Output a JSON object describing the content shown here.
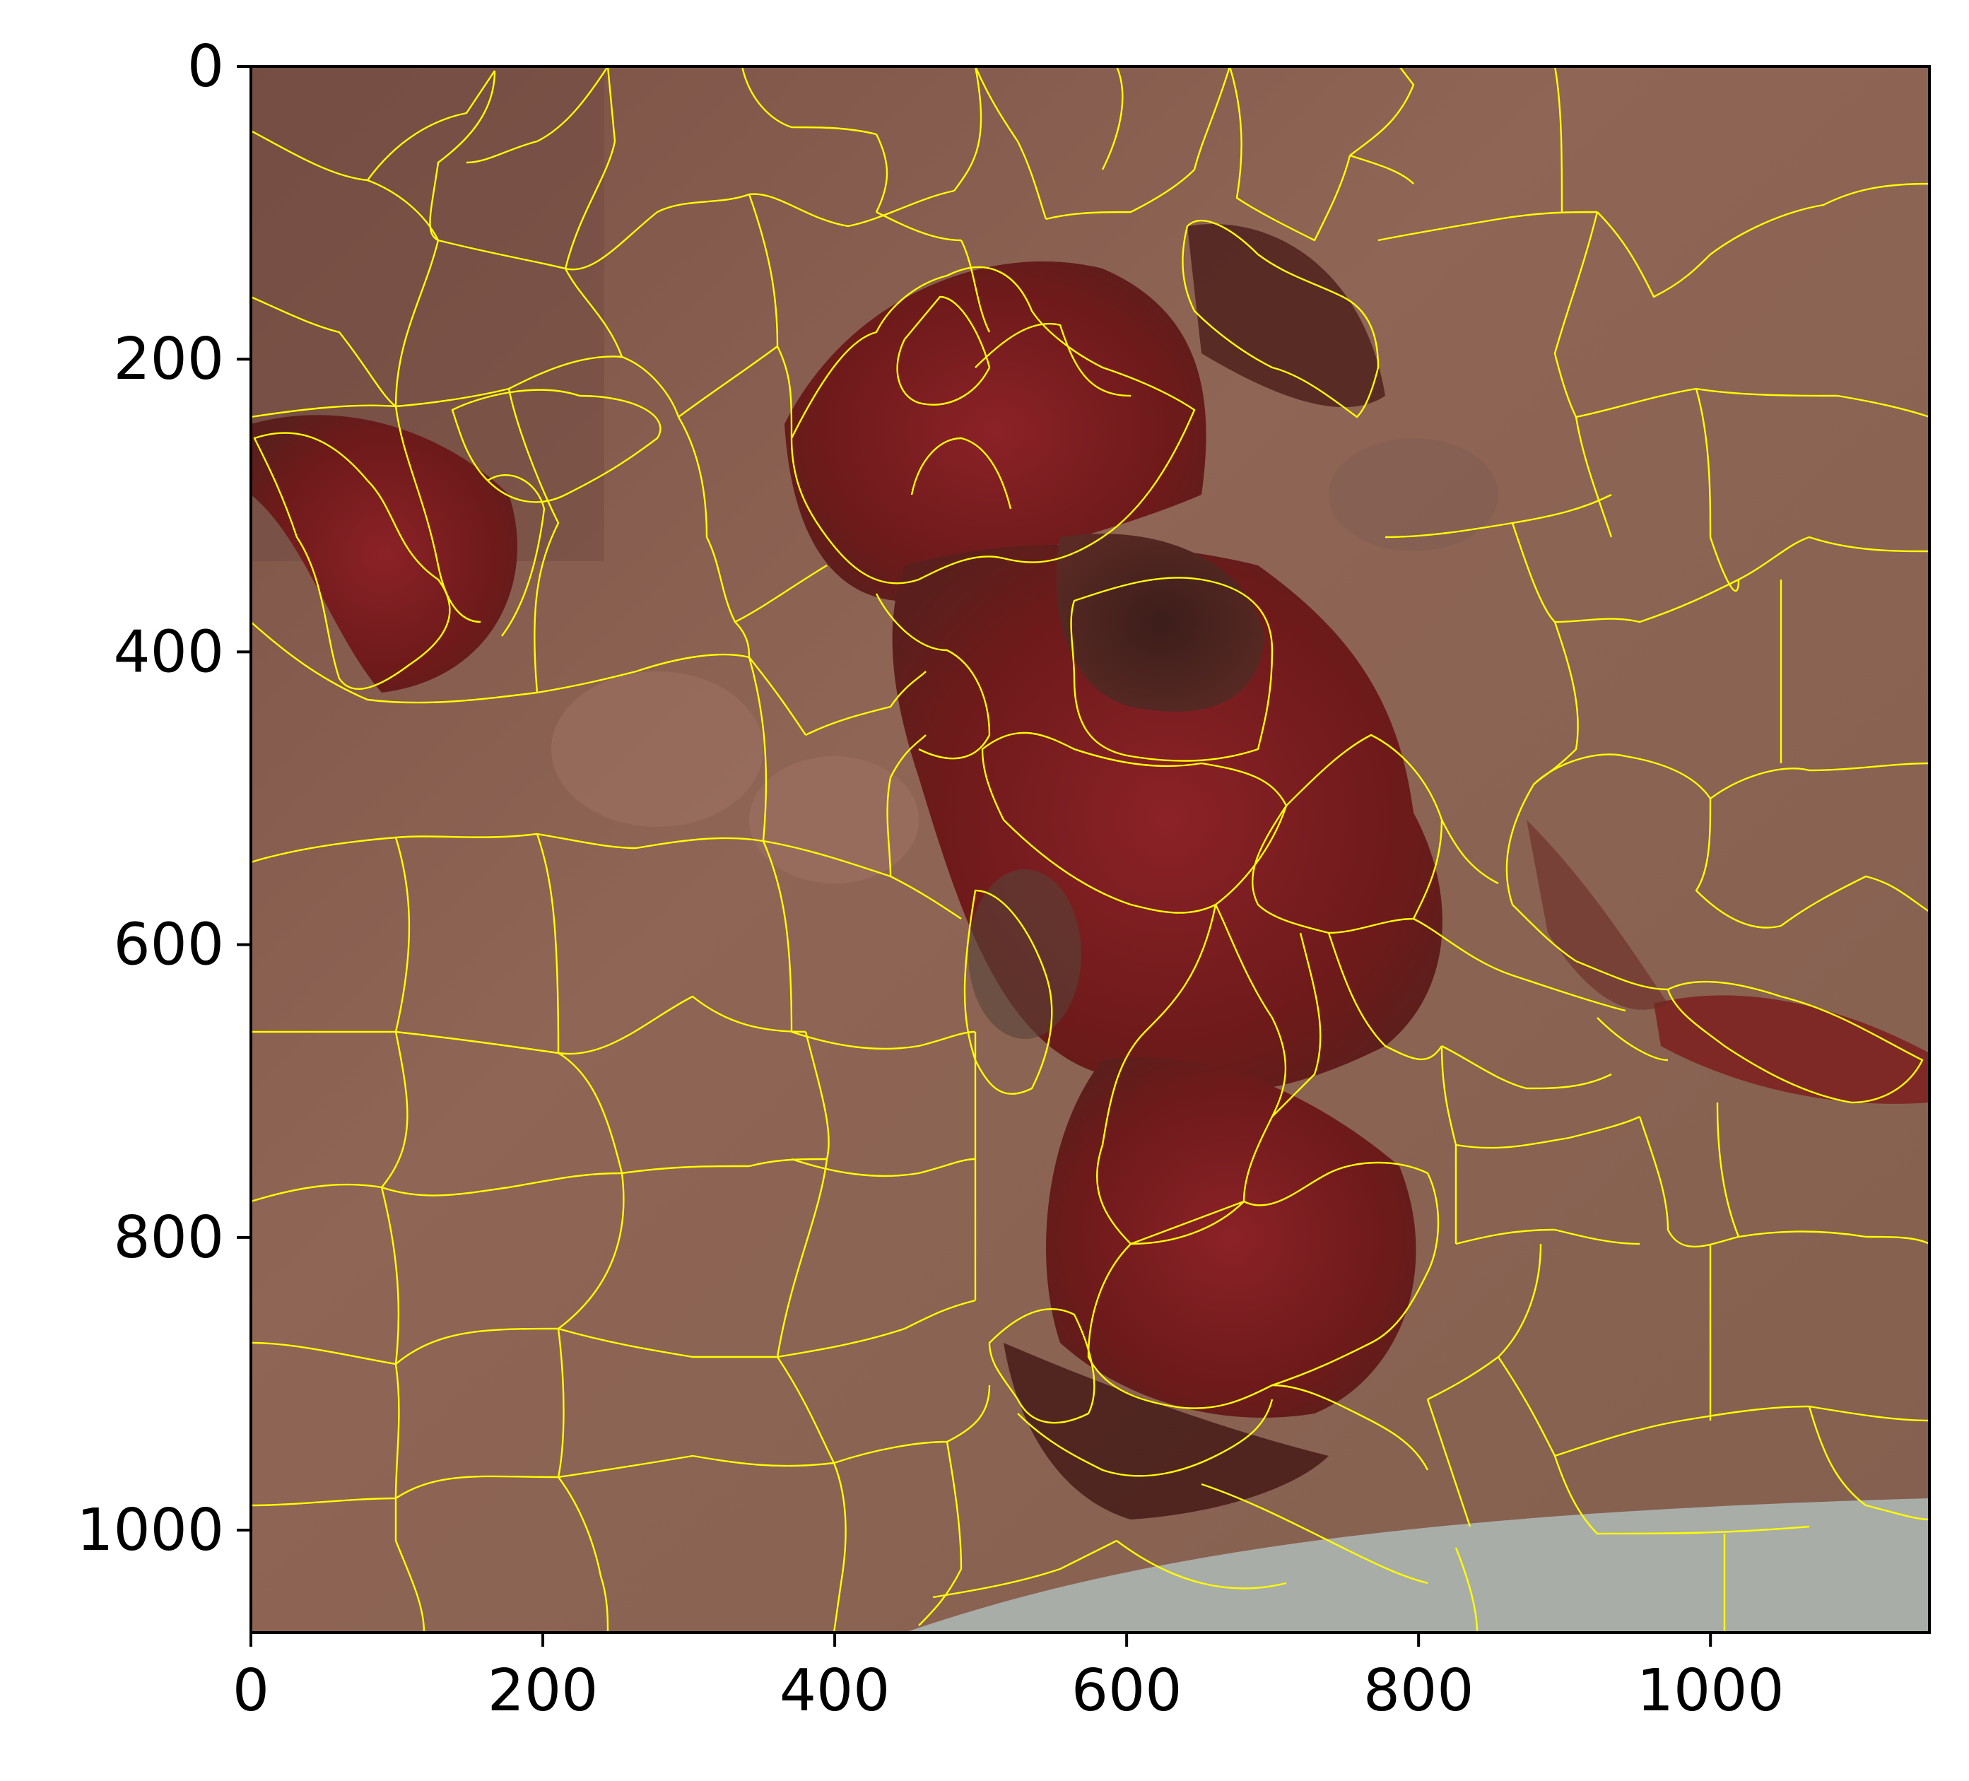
{
  "figure": {
    "kind": "image with superpixel segmentation boundaries",
    "boundary_color": "#ffff00",
    "tissue_color": "#8a5e4f",
    "lesion_color": "#7a1e1e",
    "background_color": "#a8aca6"
  },
  "axes": {
    "x_range": [
      0,
      1150
    ],
    "y_range": [
      1070,
      0
    ],
    "x_ticks": [
      0,
      200,
      400,
      600,
      800,
      1000
    ],
    "y_ticks": [
      0,
      200,
      400,
      600,
      800,
      1000
    ],
    "x_tick_labels": [
      "0",
      "200",
      "400",
      "600",
      "800",
      "1000"
    ],
    "y_tick_labels": [
      "0",
      "200",
      "400",
      "600",
      "800",
      "1000"
    ]
  }
}
